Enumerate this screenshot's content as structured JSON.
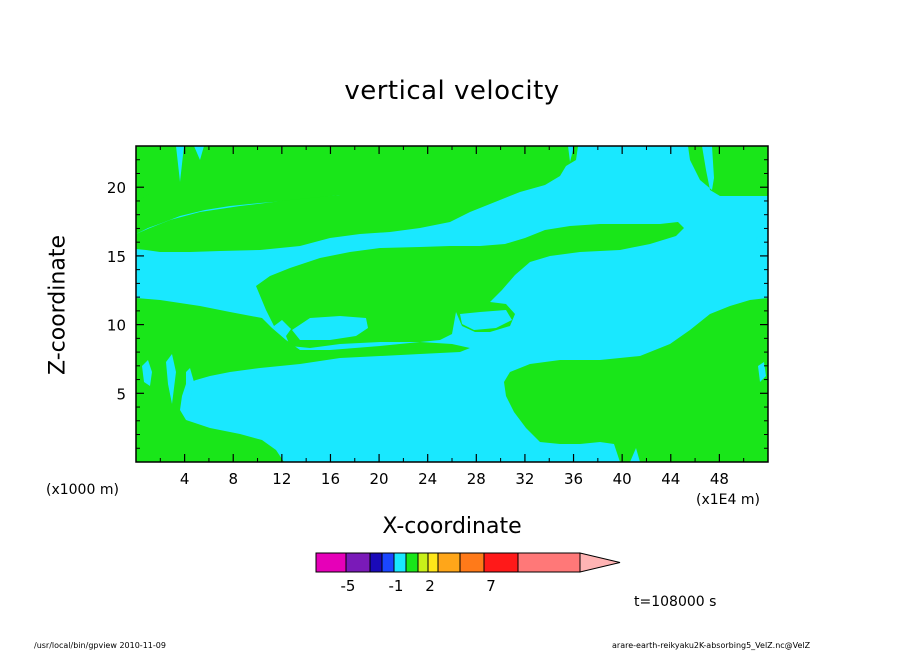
{
  "chart_data": {
    "type": "heatmap",
    "title": "vertical velocity",
    "xlabel": "X-coordinate",
    "ylabel": "Z-coordinate",
    "x_unit_left": "(x1000 m)",
    "x_unit_right": "(x1E4 m)",
    "xlim": [
      0,
      52
    ],
    "ylim": [
      0,
      23
    ],
    "x_ticks": [
      4,
      8,
      12,
      16,
      20,
      24,
      28,
      32,
      36,
      40,
      44,
      48
    ],
    "y_ticks": [
      5,
      10,
      15,
      20
    ],
    "fill_colors": {
      "negative_small": "#19e8ff",
      "positive_small": "#19e619"
    },
    "colorbar": {
      "colors": [
        "#e600b8",
        "#7a1ab8",
        "#1a0ab8",
        "#1a46ff",
        "#19e8ff",
        "#19e619",
        "#c8f019",
        "#ffe619",
        "#ffa619",
        "#ff7a19",
        "#ff1919",
        "#ff7878",
        "#ffb4b4"
      ],
      "tick_labels": [
        "-5",
        "-1",
        "2",
        "7"
      ]
    },
    "time_label": "t=108000 s"
  },
  "footer": {
    "left": "/usr/local/bin/gpview  2010-11-09",
    "right": "arare-earth-reikyaku2K-absorbing5_VelZ.nc@VelZ"
  }
}
